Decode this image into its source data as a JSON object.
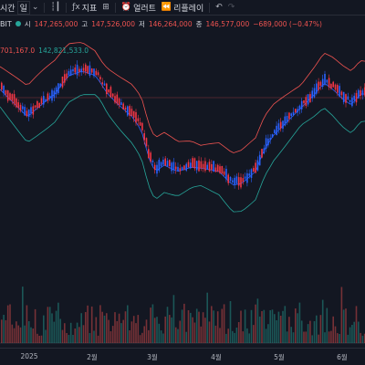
{
  "toolbar": {
    "interval_label": "시간",
    "interval_value": "일",
    "indicators_label": "지표",
    "alert_label": "얼러트",
    "replay_label": "리플레이",
    "undo_icon": "undo-icon",
    "redo_icon": "redo-icon"
  },
  "legend": {
    "symbol": "BIT",
    "open_label": "시",
    "open": "147,265,000",
    "high_label": "고",
    "high": "147,526,000",
    "low_label": "저",
    "low": "146,264,000",
    "close_label": "종",
    "close": "146,577,000",
    "change": "−689,000 (−0.47%)"
  },
  "bands_legend": {
    "upper": "701,167.0",
    "lower": "142,821,533.0"
  },
  "colors": {
    "background": "#131722",
    "up": "#26a69a",
    "down": "#ef5350",
    "candle_up": "#2962ff",
    "candle_down": "#f23645",
    "upper_band": "#ef5350",
    "lower_band": "#26a69a",
    "basis": "#2962ff"
  },
  "chart_data": {
    "type": "candlestick",
    "x_ticks": [
      "2025",
      "2월",
      "3월",
      "4월",
      "5월",
      "6월"
    ]
  }
}
